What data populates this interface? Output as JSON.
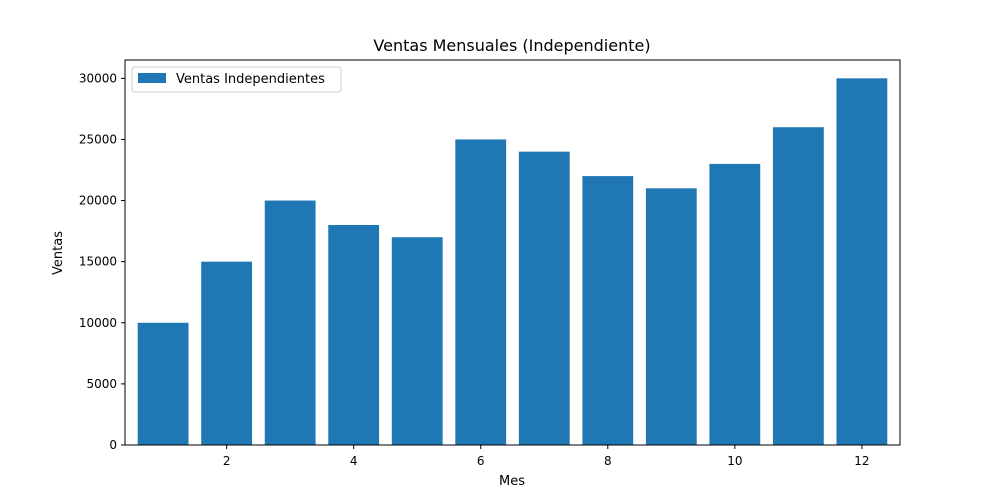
{
  "chart_data": {
    "type": "bar",
    "title": "Ventas Mensuales (Independiente)",
    "xlabel": "Mes",
    "ylabel": "Ventas",
    "x": [
      1,
      2,
      3,
      4,
      5,
      6,
      7,
      8,
      9,
      10,
      11,
      12
    ],
    "series": [
      {
        "name": "Ventas Independientes",
        "values": [
          10000,
          15000,
          20000,
          18000,
          17000,
          25000,
          24000,
          22000,
          21000,
          23000,
          26000,
          30000
        ],
        "color": "#1f77b4"
      }
    ],
    "xticks": [
      2,
      4,
      6,
      8,
      10,
      12
    ],
    "yticks": [
      0,
      5000,
      10000,
      15000,
      20000,
      25000,
      30000
    ],
    "xlim": [
      0.4,
      12.6
    ],
    "ylim": [
      0,
      31500
    ],
    "legend": "top-left",
    "grid": false
  }
}
